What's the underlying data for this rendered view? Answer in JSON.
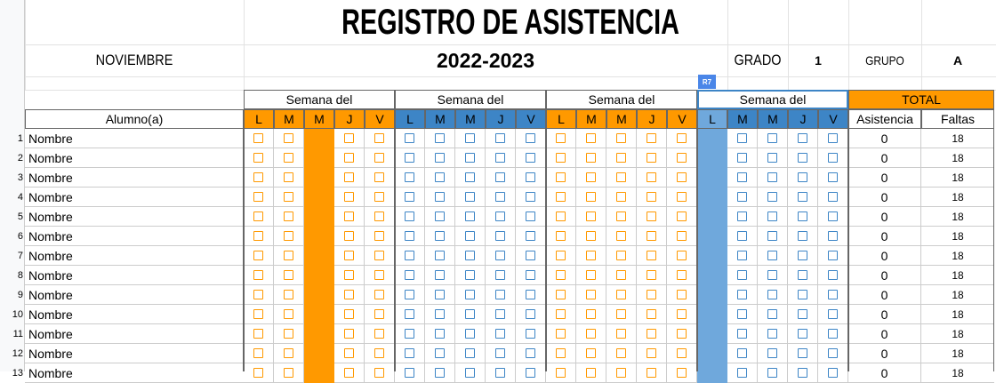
{
  "header": {
    "title": "REGISTRO DE ASISTENCIA",
    "month": "NOVIEMBRE",
    "year": "2022-2023",
    "grade_label": "GRADO",
    "grade_value": "1",
    "group_label": "GRUPO",
    "group_value": "A",
    "selected_cell": "R7"
  },
  "table": {
    "student_header": "Alumno(a)",
    "total_header": "TOTAL",
    "attendance_header": "Asistencia",
    "absences_header": "Faltas",
    "weeks": [
      {
        "label": "Semana del",
        "days": [
          "L",
          "M",
          "M",
          "J",
          "V"
        ]
      },
      {
        "label": "Semana del",
        "days": [
          "L",
          "M",
          "M",
          "J",
          "V"
        ]
      },
      {
        "label": "Semana del",
        "days": [
          "L",
          "M",
          "M",
          "J",
          "V"
        ]
      },
      {
        "label": "Semana del",
        "days": [
          "L",
          "M",
          "M",
          "J",
          "V"
        ]
      }
    ],
    "rows": [
      {
        "number": 1,
        "name": "Nombre",
        "attendance": 0,
        "absences": 18
      },
      {
        "number": 2,
        "name": "Nombre",
        "attendance": 0,
        "absences": 18
      },
      {
        "number": 3,
        "name": "Nombre",
        "attendance": 0,
        "absences": 18
      },
      {
        "number": 4,
        "name": "Nombre",
        "attendance": 0,
        "absences": 18
      },
      {
        "number": 5,
        "name": "Nombre",
        "attendance": 0,
        "absences": 18
      },
      {
        "number": 6,
        "name": "Nombre",
        "attendance": 0,
        "absences": 18
      },
      {
        "number": 7,
        "name": "Nombre",
        "attendance": 0,
        "absences": 18
      },
      {
        "number": 8,
        "name": "Nombre",
        "attendance": 0,
        "absences": 18
      },
      {
        "number": 9,
        "name": "Nombre",
        "attendance": 0,
        "absences": 18
      },
      {
        "number": 10,
        "name": "Nombre",
        "attendance": 0,
        "absences": 18
      },
      {
        "number": 11,
        "name": "Nombre",
        "attendance": 0,
        "absences": 18
      },
      {
        "number": 12,
        "name": "Nombre",
        "attendance": 0,
        "absences": 18
      },
      {
        "number": 13,
        "name": "Nombre",
        "attendance": 0,
        "absences": 18
      }
    ]
  }
}
